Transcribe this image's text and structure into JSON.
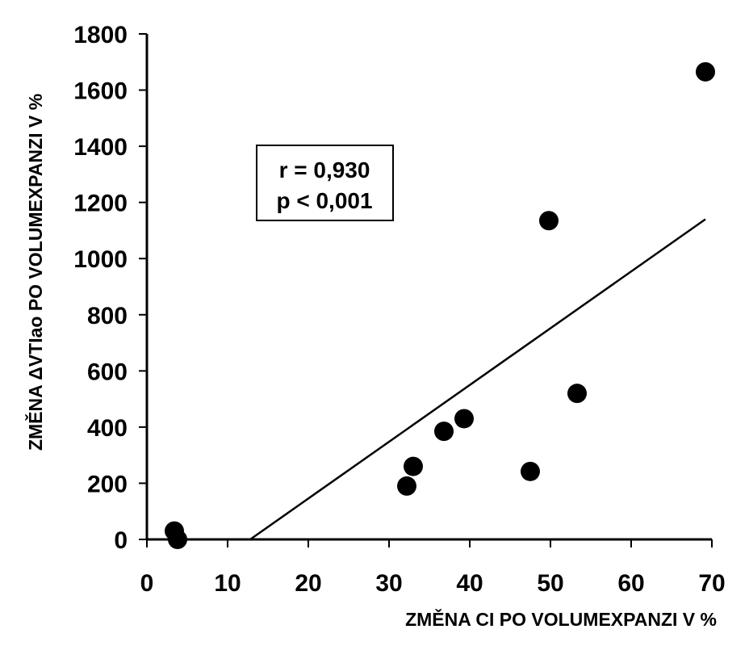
{
  "colors": {
    "background": "#ffffff",
    "ink": "#000000"
  },
  "chart_data": {
    "type": "scatter",
    "title": "",
    "xlabel": "ZMĚNA CI PO VOLUMEXPANZI  V %",
    "ylabel": "ZMĚNA ΔVTIao PO VOLUMEXPANZI V %",
    "xlim": [
      0,
      70
    ],
    "ylim": [
      0,
      1800
    ],
    "x_ticks": [
      0,
      10,
      20,
      30,
      40,
      50,
      60,
      70
    ],
    "y_ticks": [
      0,
      200,
      400,
      600,
      800,
      1000,
      1200,
      1400,
      1600,
      1800
    ],
    "grid": false,
    "points": [
      {
        "x": 3.4,
        "y": 30
      },
      {
        "x": 3.8,
        "y": 0
      },
      {
        "x": 32.2,
        "y": 190
      },
      {
        "x": 33.0,
        "y": 260
      },
      {
        "x": 36.8,
        "y": 385
      },
      {
        "x": 39.3,
        "y": 430
      },
      {
        "x": 47.5,
        "y": 242
      },
      {
        "x": 49.8,
        "y": 1135
      },
      {
        "x": 53.3,
        "y": 520
      },
      {
        "x": 69.2,
        "y": 1665
      }
    ],
    "regression_line": {
      "x": [
        12.8,
        69.2
      ],
      "y": [
        0,
        1140
      ]
    },
    "annotations": [
      "r = 0,930",
      "p < 0,001"
    ]
  }
}
